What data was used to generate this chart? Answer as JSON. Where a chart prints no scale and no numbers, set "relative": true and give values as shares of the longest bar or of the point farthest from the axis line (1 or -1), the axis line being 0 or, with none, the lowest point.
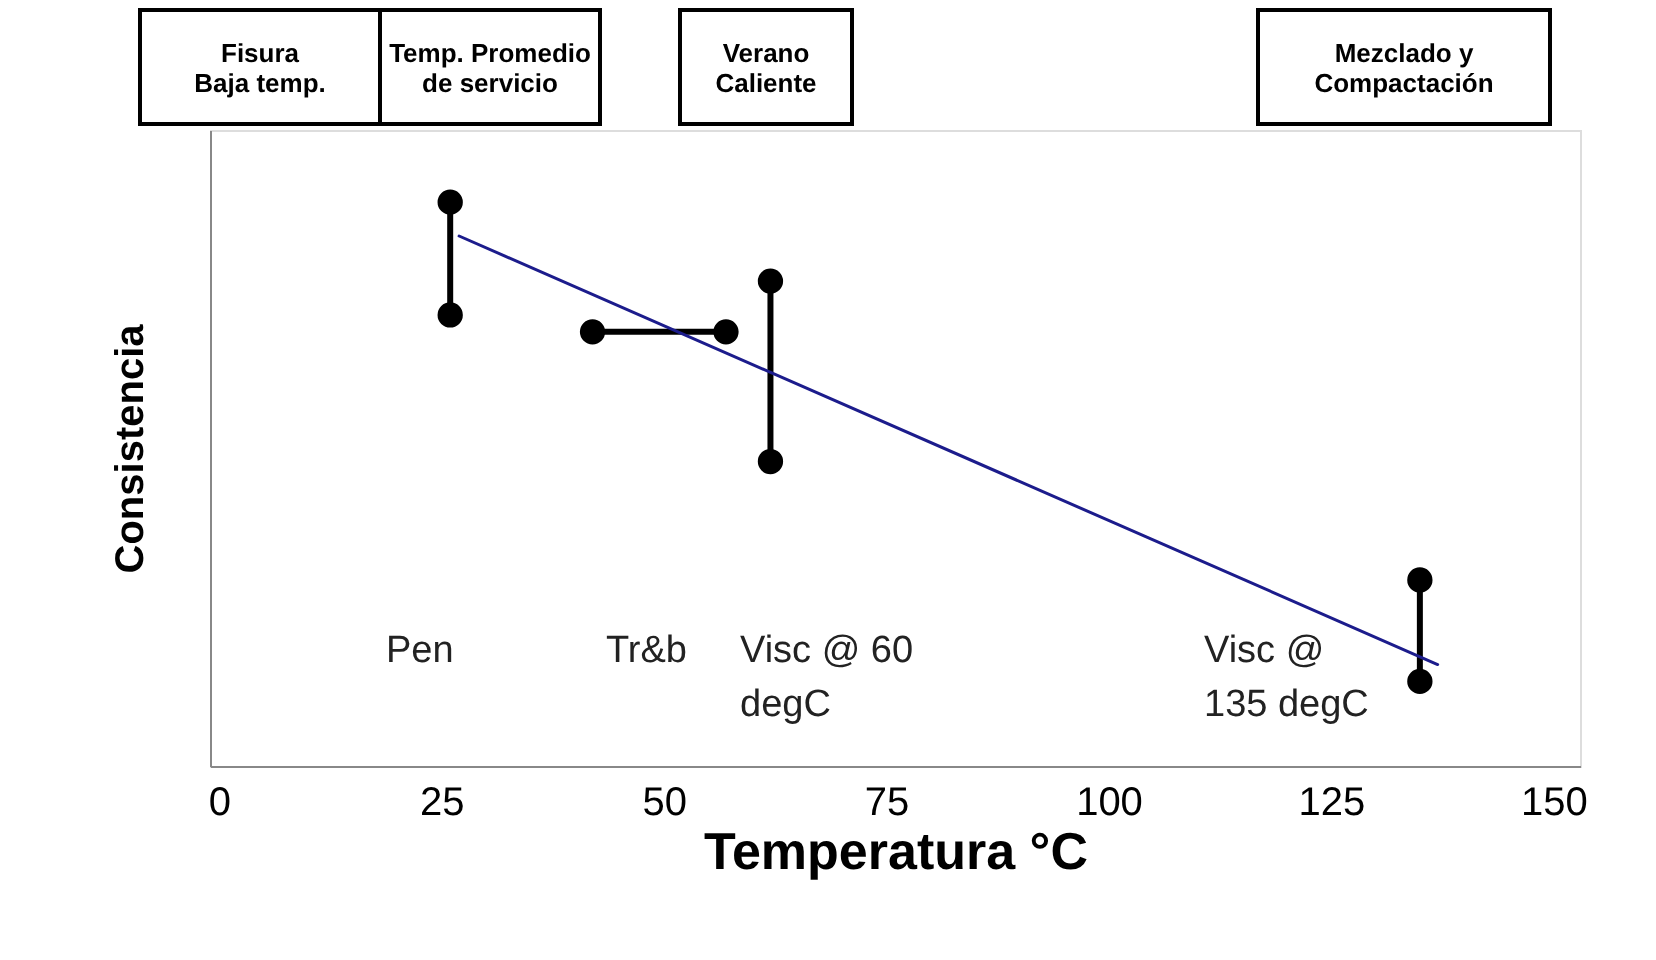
{
  "chart_data": {
    "type": "line",
    "relative": true,
    "xlabel": "Temperatura °C",
    "ylabel": "Consistencia",
    "xlim": [
      -1,
      153
    ],
    "xticks": [
      0,
      25,
      50,
      75,
      100,
      125,
      150
    ],
    "tick_labels": "x",
    "grid": false,
    "series": [
      {
        "color": "#000000",
        "marker": "circle",
        "x": [
          26,
          26
        ],
        "values": [
          1,
          0.8
        ]
      },
      {
        "color": "#000000",
        "marker": "circle",
        "x": [
          42,
          57
        ],
        "values": [
          0.77,
          0.77
        ]
      },
      {
        "color": "#000000",
        "marker": "circle",
        "x": [
          62,
          62
        ],
        "values": [
          0.86,
          0.54
        ]
      },
      {
        "color": "#000000",
        "marker": "circle",
        "x": [
          135,
          135
        ],
        "values": [
          0.33,
          0.15
        ]
      },
      {
        "color": "#1c1c8c",
        "marker": "none",
        "x": [
          27,
          137
        ],
        "values": [
          0.94,
          0.18
        ]
      }
    ],
    "annotations": [
      "Fisura\nBaja temp.",
      "Temp. Promedio\nde servicio",
      "Verano\nCaliente",
      "Mezclado y\nCompactación",
      "Pen",
      "Tr&b",
      "Visc @ 60\ndegC",
      "Visc @\n135 degC"
    ]
  }
}
